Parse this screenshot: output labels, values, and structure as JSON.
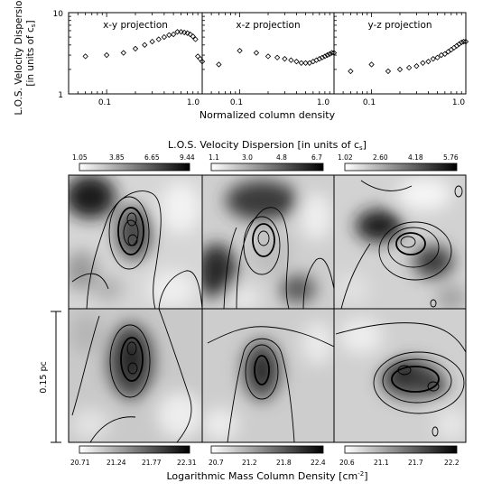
{
  "chart_data": [
    {
      "type": "scatter",
      "panel": "x-y projection",
      "title": "x-y projection",
      "x": [
        0.06,
        0.1,
        0.15,
        0.2,
        0.25,
        0.3,
        0.35,
        0.4,
        0.45,
        0.5,
        0.55,
        0.6,
        0.65,
        0.7,
        0.75,
        0.8,
        0.85,
        0.9,
        0.95,
        1.0
      ],
      "y": [
        2.9,
        3.0,
        3.2,
        3.6,
        4.0,
        4.4,
        4.7,
        5.0,
        5.3,
        5.4,
        5.8,
        5.8,
        5.7,
        5.6,
        5.4,
        5.1,
        4.7,
        2.9,
        2.7,
        2.5
      ],
      "xlim": [
        0.04,
        1.0
      ],
      "ylim": [
        1,
        10
      ],
      "xscale": "log",
      "yscale": "log",
      "xticks": [
        "0.1",
        "1.0"
      ],
      "yticks": [
        "1",
        "10"
      ]
    },
    {
      "type": "scatter",
      "panel": "x-z projection",
      "title": "x-z projection",
      "x": [
        0.06,
        0.1,
        0.15,
        0.2,
        0.25,
        0.3,
        0.35,
        0.4,
        0.45,
        0.5,
        0.55,
        0.6,
        0.65,
        0.7,
        0.75,
        0.8,
        0.85,
        0.9,
        0.95,
        1.0
      ],
      "y": [
        2.3,
        3.4,
        3.2,
        2.9,
        2.8,
        2.7,
        2.6,
        2.5,
        2.4,
        2.4,
        2.4,
        2.5,
        2.6,
        2.7,
        2.8,
        2.9,
        3.0,
        3.1,
        3.2,
        3.2
      ],
      "xlim": [
        0.04,
        1.0
      ],
      "ylim": [
        1,
        10
      ],
      "xscale": "log",
      "yscale": "log",
      "xticks": [
        "0.1",
        "1.0"
      ]
    },
    {
      "type": "scatter",
      "panel": "y-z projection",
      "title": "y-z projection",
      "x": [
        0.06,
        0.1,
        0.15,
        0.2,
        0.25,
        0.3,
        0.35,
        0.4,
        0.45,
        0.5,
        0.55,
        0.6,
        0.65,
        0.7,
        0.75,
        0.8,
        0.85,
        0.9,
        0.95,
        1.0
      ],
      "y": [
        1.9,
        2.3,
        1.9,
        2.0,
        2.1,
        2.2,
        2.4,
        2.5,
        2.7,
        2.8,
        3.0,
        3.1,
        3.3,
        3.5,
        3.7,
        3.9,
        4.1,
        4.3,
        4.4,
        4.4
      ],
      "xlim": [
        0.04,
        1.0
      ],
      "ylim": [
        1,
        10
      ],
      "xscale": "log",
      "yscale": "log",
      "xticks": [
        "0.1",
        "1.0"
      ]
    }
  ],
  "top": {
    "ylabel_line1": "L.O.S. Velocity Dispersion",
    "ylabel_line2": "[in units of c",
    "ylabel_sub": "s",
    "ylabel_end": "]",
    "xlabel": "Normalized column density"
  },
  "velocity_colorbar": {
    "label": "L.O.S. Velocity Dispersion [in units of c",
    "label_sub": "s",
    "label_end": "]",
    "bars": [
      {
        "ticks": [
          "1.05",
          "3.85",
          "6.65",
          "9.44"
        ]
      },
      {
        "ticks": [
          "1.1",
          "3.0",
          "4.8",
          "6.7"
        ]
      },
      {
        "ticks": [
          "1.02",
          "2.60",
          "4.18",
          "5.76"
        ]
      }
    ]
  },
  "density_colorbar": {
    "label": "Logarithmic Mass Column Density [cm",
    "label_sup": "-2",
    "label_end": "]",
    "bars": [
      {
        "ticks": [
          "20.71",
          "21.24",
          "21.77",
          "22.31"
        ]
      },
      {
        "ticks": [
          "20.7",
          "21.2",
          "21.8",
          "22.4"
        ]
      },
      {
        "ticks": [
          "20.6",
          "21.1",
          "21.7",
          "22.2"
        ]
      }
    ]
  },
  "scale_bar": {
    "label": "0.15 pc"
  },
  "colors": {
    "marker": "#000000",
    "background": "#ffffff"
  }
}
